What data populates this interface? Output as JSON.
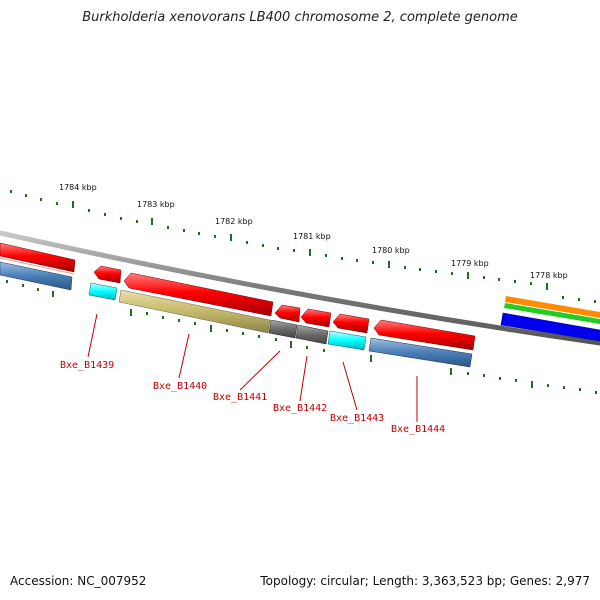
{
  "title": "Burkholderia xenovorans LB400 chromosome 2, complete genome",
  "footer": {
    "accession": "Accession: NC_007952",
    "summary": "Topology: circular; Length: 3,363,523 bp; Genes: 2,977"
  },
  "colors": {
    "backbone": "#8a8a8a",
    "tick": "#1f6f1f",
    "label": "#c00000"
  },
  "ticks": [
    {
      "label": "1784 kbp"
    },
    {
      "label": "1783 kbp"
    },
    {
      "label": "1782 kbp"
    },
    {
      "label": "1781 kbp"
    },
    {
      "label": "1780 kbp"
    },
    {
      "label": "1779 kbp"
    },
    {
      "label": "1778 kbp"
    }
  ],
  "labeled_genes": [
    {
      "name": "Bxe_B1439"
    },
    {
      "name": "Bxe_B1440"
    },
    {
      "name": "Bxe_B1441"
    },
    {
      "name": "Bxe_B1442"
    },
    {
      "name": "Bxe_B1443"
    },
    {
      "name": "Bxe_B1444"
    }
  ]
}
